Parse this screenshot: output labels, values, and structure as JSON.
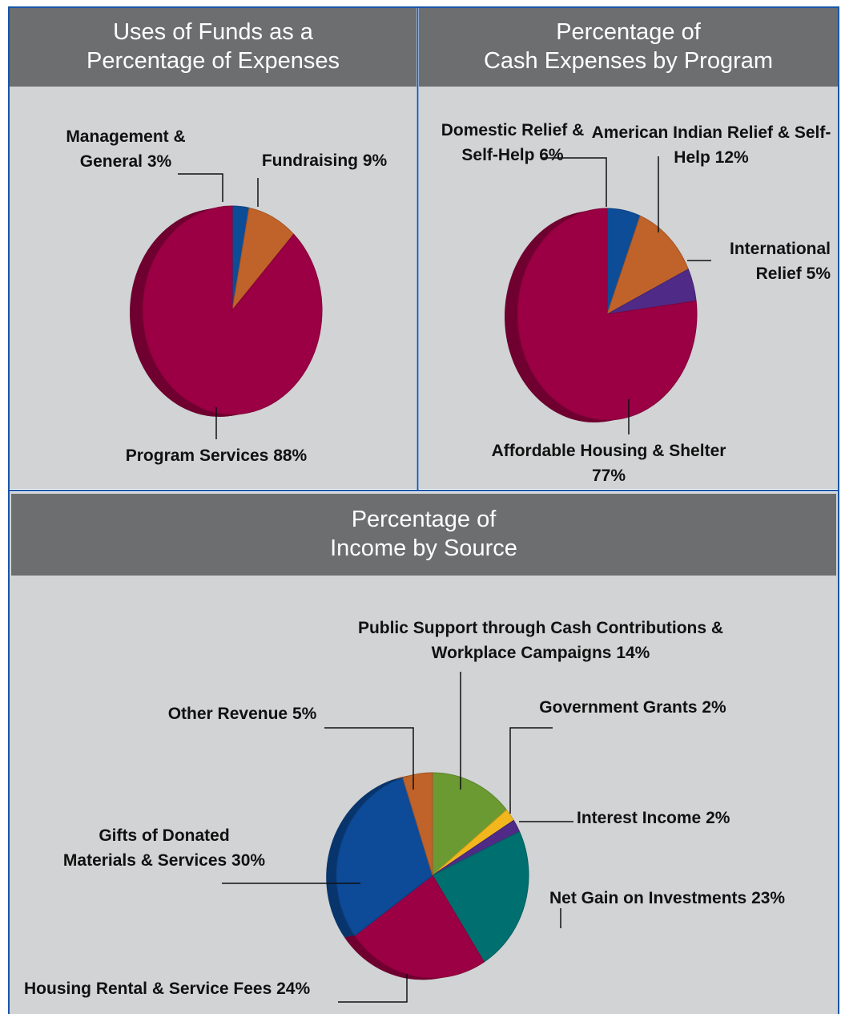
{
  "chart_data": [
    {
      "type": "pie",
      "title": [
        "Uses of Funds as a",
        "Percentage of Expenses"
      ],
      "categories": [
        "Management & General",
        "Fundraising",
        "Program Services"
      ],
      "values": [
        3,
        9,
        88
      ],
      "value_labels": [
        "3%",
        "9%",
        "88%"
      ],
      "colors": [
        "#0d4c97",
        "#c0632a",
        "#9a0043"
      ]
    },
    {
      "type": "pie",
      "title": [
        "Percentage of",
        "Cash Expenses by Program"
      ],
      "categories": [
        "Domestic Relief & Self-Help",
        "American Indian Relief & Self-Help",
        "International Relief",
        "Affordable Housing & Shelter"
      ],
      "values": [
        6,
        12,
        5,
        77
      ],
      "value_labels": [
        "6%",
        "12%",
        "5%",
        "77%"
      ],
      "colors": [
        "#0d4c97",
        "#c0632a",
        "#4f2a86",
        "#9a0043"
      ]
    },
    {
      "type": "pie",
      "title": [
        "Percentage of",
        "Income by Source"
      ],
      "categories": [
        "Public Support through Cash Contributions & Workplace Campaigns",
        "Government Grants",
        "Interest Income",
        "Net Gain on Investments",
        "Housing Rental & Service Fees",
        "Gifts of Donated Materials & Services",
        "Other Revenue"
      ],
      "values": [
        14,
        2,
        2,
        23,
        24,
        30,
        5
      ],
      "value_labels": [
        "14%",
        "2%",
        "2%",
        "23%",
        "24%",
        "30%",
        "5%"
      ],
      "colors": [
        "#6a9a31",
        "#f2b71c",
        "#4f2a86",
        "#006f6f",
        "#9a0043",
        "#0d4a97",
        "#c0632a"
      ]
    }
  ]
}
